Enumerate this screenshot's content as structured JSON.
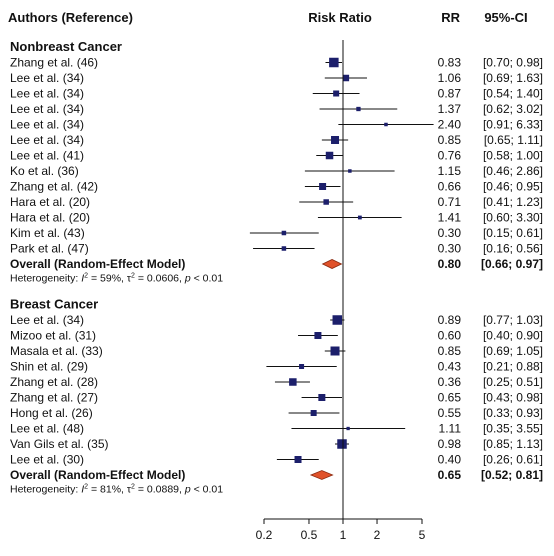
{
  "header": {
    "study_col": "Authors (Reference)",
    "effect_col": "Risk Ratio",
    "rr_col": "RR",
    "ci_col": "95%-CI"
  },
  "colors": {
    "square": "#1c1f6b",
    "diamond": "#e0522a",
    "diamond_outline": "#8a2a10",
    "line": "#111111"
  },
  "chart_data": {
    "type": "forest",
    "x_scale": "log",
    "xlim": [
      0.2,
      5
    ],
    "x_ticks": [
      {
        "value": 0.2,
        "label": "0.2"
      },
      {
        "value": 0.5,
        "label": "0.5"
      },
      {
        "value": 1,
        "label": "1"
      },
      {
        "value": 2,
        "label": "2"
      },
      {
        "value": 5,
        "label": "5"
      }
    ],
    "reference_line": 1,
    "groups": [
      {
        "title": "Nonbreast Cancer",
        "studies": [
          {
            "label": "Zhang  et al. (46)",
            "rr": 0.83,
            "lo": 0.7,
            "hi": 0.98,
            "rr_text": "0.83",
            "ci_text": "[0.70; 0.98]",
            "weight": 9.5
          },
          {
            "label": "Lee  et al. (34)",
            "rr": 1.06,
            "lo": 0.69,
            "hi": 1.63,
            "rr_text": "1.06",
            "ci_text": "[0.69; 1.63]",
            "weight": 6.5
          },
          {
            "label": "Lee  et al. (34)",
            "rr": 0.87,
            "lo": 0.54,
            "hi": 1.4,
            "rr_text": "0.87",
            "ci_text": "[0.54; 1.40]",
            "weight": 6
          },
          {
            "label": "Lee  et al. (34)",
            "rr": 1.37,
            "lo": 0.62,
            "hi": 3.02,
            "rr_text": "1.37",
            "ci_text": "[0.62; 3.02]",
            "weight": 4.3
          },
          {
            "label": "Lee  et al. (34)",
            "rr": 2.4,
            "lo": 0.91,
            "hi": 6.33,
            "rr_text": "2.40",
            "ci_text": "[0.91; 6.33]",
            "weight": 3.5
          },
          {
            "label": "Lee  et al. (34)",
            "rr": 0.85,
            "lo": 0.65,
            "hi": 1.11,
            "rr_text": "0.85",
            "ci_text": "[0.65; 1.11]",
            "weight": 8
          },
          {
            "label": "Lee  et al. (41)",
            "rr": 0.76,
            "lo": 0.58,
            "hi": 1.0,
            "rr_text": "0.76",
            "ci_text": "[0.58; 1.00]",
            "weight": 7.5
          },
          {
            "label": "Ko  et al. (36)",
            "rr": 1.15,
            "lo": 0.46,
            "hi": 2.86,
            "rr_text": "1.15",
            "ci_text": "[0.46; 2.86]",
            "weight": 3.5
          },
          {
            "label": "Zhang  et al. (42)",
            "rr": 0.66,
            "lo": 0.46,
            "hi": 0.95,
            "rr_text": "0.66",
            "ci_text": "[0.46; 0.95]",
            "weight": 7
          },
          {
            "label": "Hara  et al. (20)",
            "rr": 0.71,
            "lo": 0.41,
            "hi": 1.23,
            "rr_text": "0.71",
            "ci_text": "[0.41; 1.23]",
            "weight": 5.5
          },
          {
            "label": "Hara  et al. (20)",
            "rr": 1.41,
            "lo": 0.6,
            "hi": 3.3,
            "rr_text": "1.41",
            "ci_text": "[0.60; 3.30]",
            "weight": 3.8
          },
          {
            "label": "Kim  et al. (43)",
            "rr": 0.3,
            "lo": 0.15,
            "hi": 0.61,
            "rr_text": "0.30",
            "ci_text": "[0.15; 0.61]",
            "weight": 4.5
          },
          {
            "label": "Park  et al. (47)",
            "rr": 0.3,
            "lo": 0.16,
            "hi": 0.56,
            "rr_text": "0.30",
            "ci_text": "[0.16; 0.56]",
            "weight": 4.5
          }
        ],
        "overall": {
          "label": "Overall (Random-Effect Model)",
          "rr": 0.8,
          "lo": 0.66,
          "hi": 0.97,
          "rr_text": "0.80",
          "ci_text": "[0.66; 0.97]"
        },
        "heterogeneity": {
          "prefix": "Heterogeneity: ",
          "i2_symbol": "I",
          "i2_value": " = 59%, ",
          "tau_symbol": "τ",
          "tau_value": " = 0.0606, ",
          "p_symbol": "p",
          "p_value": " < 0.01"
        }
      },
      {
        "title": "Breast Cancer",
        "studies": [
          {
            "label": "Lee  et al. (34)",
            "rr": 0.89,
            "lo": 0.77,
            "hi": 1.03,
            "rr_text": "0.89",
            "ci_text": "[0.77; 1.03]",
            "weight": 9.5
          },
          {
            "label": "Mizoo  et al. (31)",
            "rr": 0.6,
            "lo": 0.4,
            "hi": 0.9,
            "rr_text": "0.60",
            "ci_text": "[0.40; 0.90]",
            "weight": 7
          },
          {
            "label": "Masala  et al. (33)",
            "rr": 0.85,
            "lo": 0.69,
            "hi": 1.05,
            "rr_text": "0.85",
            "ci_text": "[0.69; 1.05]",
            "weight": 9
          },
          {
            "label": "Shin  et al. (29)",
            "rr": 0.43,
            "lo": 0.21,
            "hi": 0.88,
            "rr_text": "0.43",
            "ci_text": "[0.21; 0.88]",
            "weight": 5
          },
          {
            "label": "Zhang  et al. (28)",
            "rr": 0.36,
            "lo": 0.25,
            "hi": 0.51,
            "rr_text": "0.36",
            "ci_text": "[0.25; 0.51]",
            "weight": 7.5
          },
          {
            "label": "Zhang  et al. (27)",
            "rr": 0.65,
            "lo": 0.43,
            "hi": 0.98,
            "rr_text": "0.65",
            "ci_text": "[0.43; 0.98]",
            "weight": 7
          },
          {
            "label": "Hong  et al. (26)",
            "rr": 0.55,
            "lo": 0.33,
            "hi": 0.93,
            "rr_text": "0.55",
            "ci_text": "[0.33; 0.93]",
            "weight": 6
          },
          {
            "label": "Lee  et al. (48)",
            "rr": 1.11,
            "lo": 0.35,
            "hi": 3.55,
            "rr_text": "1.11",
            "ci_text": "[0.35; 3.55]",
            "weight": 3.3
          },
          {
            "label": "Van Gils  et al. (35)",
            "rr": 0.98,
            "lo": 0.85,
            "hi": 1.13,
            "rr_text": "0.98",
            "ci_text": "[0.85; 1.13]",
            "weight": 9.5
          },
          {
            "label": "Lee  et al. (30)",
            "rr": 0.4,
            "lo": 0.26,
            "hi": 0.61,
            "rr_text": "0.40",
            "ci_text": "[0.26; 0.61]",
            "weight": 7
          }
        ],
        "overall": {
          "label": "Overall (Random-Effect Model)",
          "rr": 0.65,
          "lo": 0.52,
          "hi": 0.81,
          "rr_text": "0.65",
          "ci_text": "[0.52; 0.81]"
        },
        "heterogeneity": {
          "prefix": "Heterogeneity: ",
          "i2_symbol": "I",
          "i2_value": " = 81%, ",
          "tau_symbol": "τ",
          "tau_value": " = 0.0889, ",
          "p_symbol": "p",
          "p_value": " < 0.01"
        }
      }
    ]
  }
}
